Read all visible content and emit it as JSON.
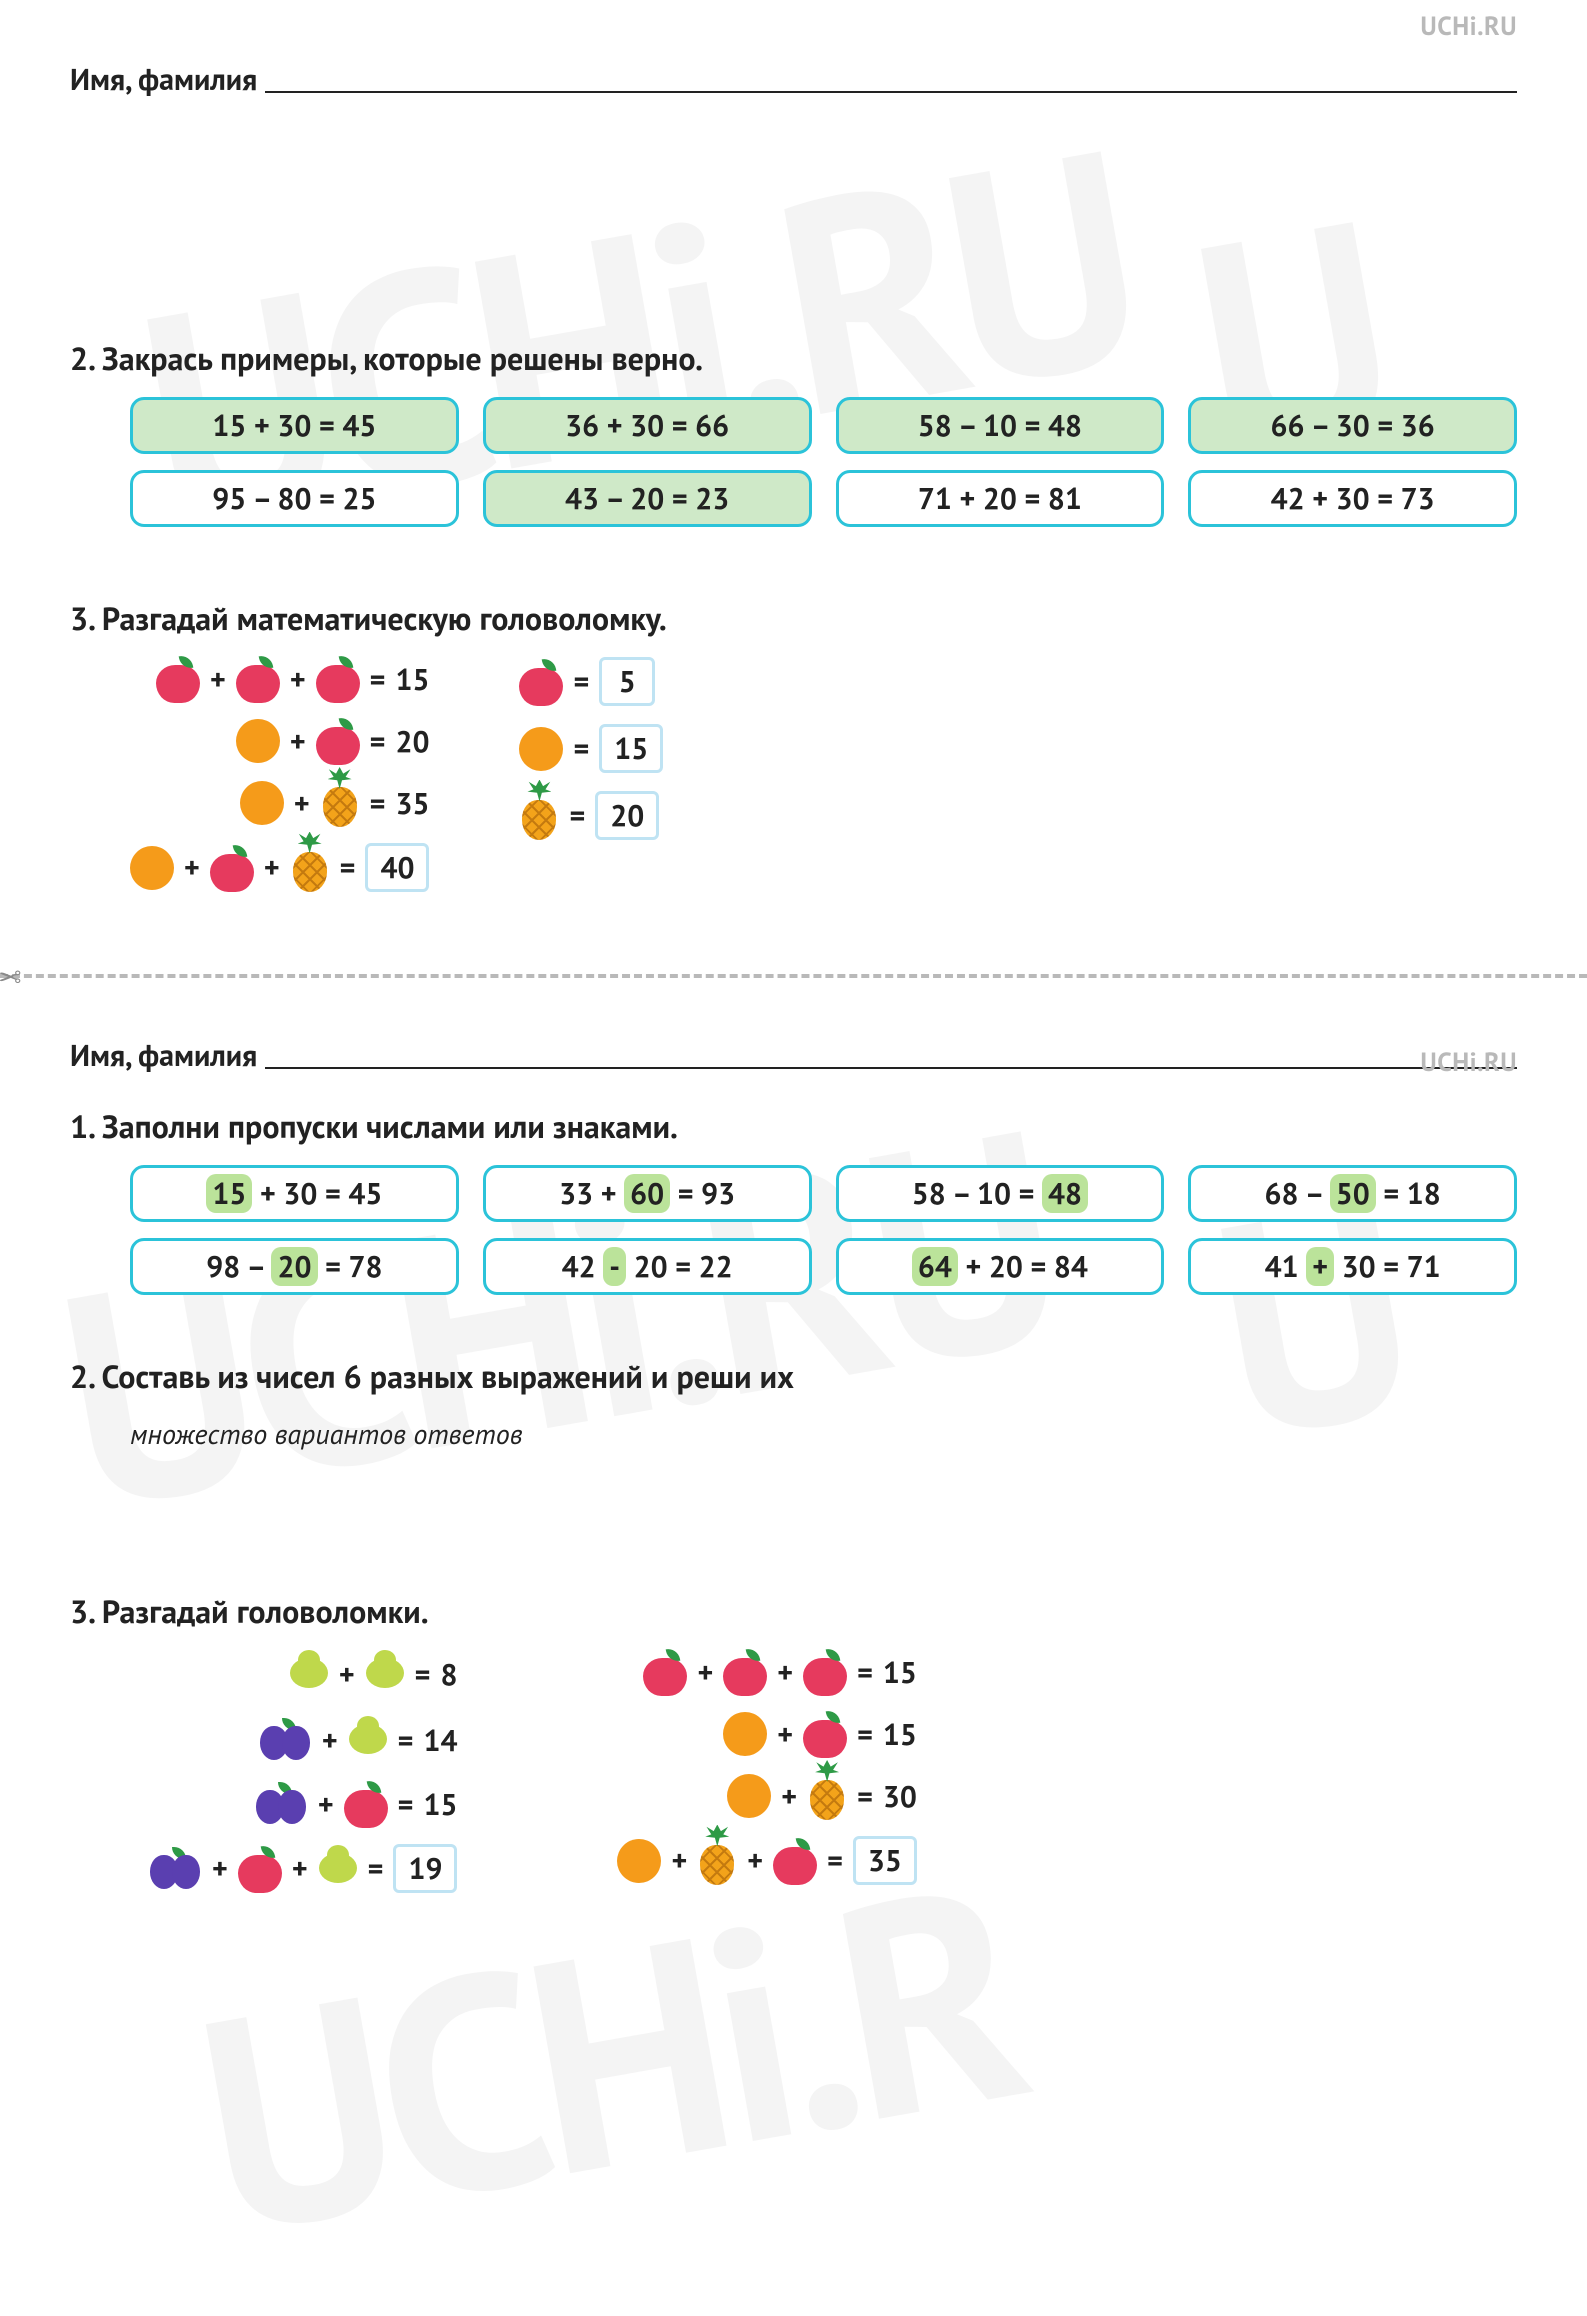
{
  "brand": "UCHi.RU",
  "watermark_text": "UCHi.RU",
  "watermark_color": "#000000",
  "watermark_opacity": 0.04,
  "watermark_rotation_deg": -10,
  "colors": {
    "text": "#222222",
    "brand_grey": "#b9b9b9",
    "pill_border": "#2bc3d9",
    "pill_fill_correct": "#cfe9c8",
    "highlight_fill": "#bbe39a",
    "answer_border": "#bfe3f3",
    "cut_line": "#b9b9b9"
  },
  "fruit_colors": {
    "apple": "#e63a5e",
    "orange": "#f59b1a",
    "pineapple": "#f3a31a",
    "pear": "#bfd84b",
    "plums": "#5a3fb0",
    "leaf": "#2e9a46"
  },
  "top": {
    "name_label": "Имя, фамилия",
    "task2_title": "2. Закрась примеры, которые решены верно.",
    "pills": [
      {
        "text": "15 + 30 = 45",
        "correct": true
      },
      {
        "text": "36 + 30 = 66",
        "correct": true
      },
      {
        "text": "58 – 10 = 48",
        "correct": true
      },
      {
        "text": "66 – 30 = 36",
        "correct": true
      },
      {
        "text": "95 – 80 = 25",
        "correct": false
      },
      {
        "text": "43 – 20 = 23",
        "correct": true
      },
      {
        "text": "71 + 20 = 81",
        "correct": false
      },
      {
        "text": "42 + 30 = 73",
        "correct": false
      }
    ],
    "task3_title": "3. Разгадай математическую головоломку.",
    "puzzle_left": [
      {
        "items": [
          "apple",
          "+",
          "apple",
          "+",
          "apple",
          "=",
          "15"
        ]
      },
      {
        "items": [
          "orange",
          "+",
          "apple",
          "=",
          "20"
        ]
      },
      {
        "items": [
          "orange",
          "+",
          "pineapple",
          "=",
          "35"
        ]
      },
      {
        "items": [
          "orange",
          "+",
          "apple",
          "+",
          "pineapple",
          "=",
          "box:40"
        ]
      }
    ],
    "puzzle_right": [
      {
        "items": [
          "apple",
          "=",
          "box:5"
        ]
      },
      {
        "items": [
          "orange",
          "=",
          "box:15"
        ]
      },
      {
        "items": [
          "pineapple",
          "=",
          "box:20"
        ]
      }
    ]
  },
  "bottom": {
    "name_label": "Имя, фамилия",
    "task1_title": "1. Заполни пропуски числами или знаками.",
    "pills": [
      {
        "parts": [
          "hl:15",
          " + 30 = 45"
        ]
      },
      {
        "parts": [
          "33 + ",
          "hl:60",
          " = 93"
        ]
      },
      {
        "parts": [
          "58 – 10 = ",
          "hl:48"
        ]
      },
      {
        "parts": [
          "68 – ",
          "hl:50",
          " = 18"
        ]
      },
      {
        "parts": [
          "98 – ",
          "hl:20",
          " = 78"
        ]
      },
      {
        "parts": [
          "42 ",
          "hl:-",
          " 20 = 22"
        ]
      },
      {
        "parts": [
          "hl:64",
          " + 20 = 84"
        ]
      },
      {
        "parts": [
          "41 ",
          "hl:+",
          " 30 = 71"
        ]
      }
    ],
    "task2_title": "2. Составь из чисел 6 разных выражений и реши их",
    "task2_note": "множество вариантов ответов",
    "task3_title": "3. Разгадай головоломки.",
    "puzzle_left": [
      {
        "items": [
          "pear",
          "+",
          "pear",
          "=",
          "8"
        ]
      },
      {
        "items": [
          "plums",
          "+",
          "pear",
          "=",
          "14"
        ]
      },
      {
        "items": [
          "plums",
          "+",
          "apple",
          "=",
          "15"
        ]
      },
      {
        "items": [
          "plums",
          "+",
          "apple",
          "+",
          "pear",
          "=",
          "box:19"
        ]
      }
    ],
    "puzzle_right": [
      {
        "items": [
          "apple",
          "+",
          "apple",
          "+",
          "apple",
          "=",
          "15"
        ]
      },
      {
        "items": [
          "orange",
          "+",
          "apple",
          "=",
          "15"
        ]
      },
      {
        "items": [
          "orange",
          "+",
          "pineapple",
          "=",
          "30"
        ]
      },
      {
        "items": [
          "orange",
          "+",
          "pineapple",
          "+",
          "apple",
          "=",
          "box:35"
        ]
      }
    ]
  }
}
